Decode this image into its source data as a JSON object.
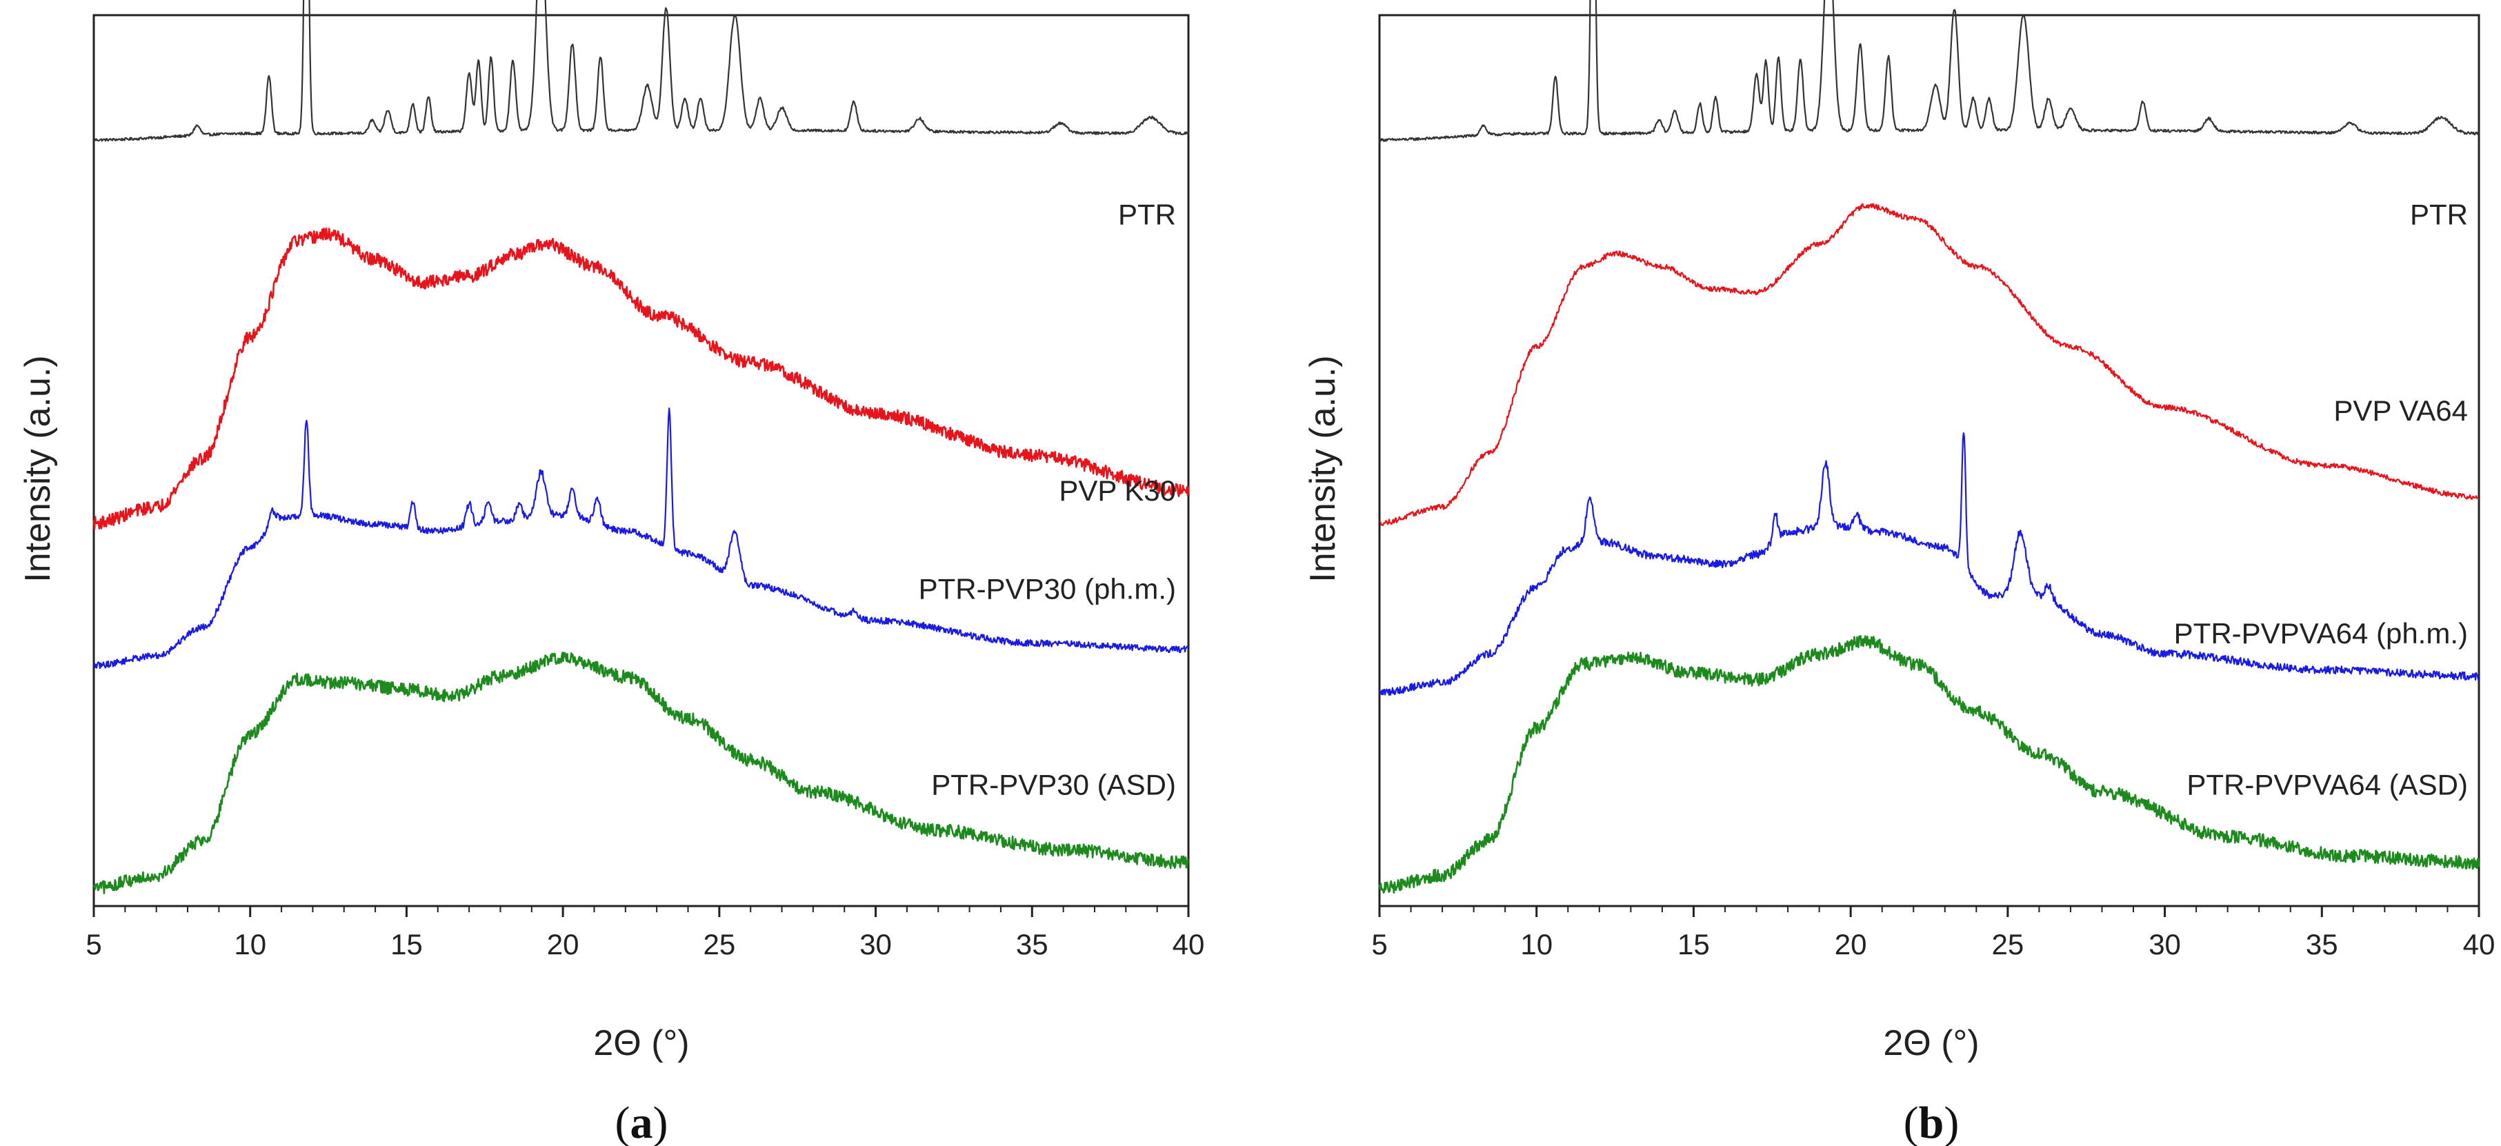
{
  "chart_data": [
    {
      "type": "line",
      "panel_label": "a",
      "xlabel": "2Θ (°)",
      "ylabel": "Intensity (a.u.)",
      "xlim": [
        5,
        40
      ],
      "xticks": [
        5,
        10,
        15,
        20,
        25,
        30,
        35,
        40
      ],
      "yticks": "none",
      "series": [
        {
          "name": "PTR",
          "color": "#333333",
          "offset": 0.86,
          "scale": 0.36,
          "baseline": [
            [
              5,
              0
            ],
            [
              10,
              0.02
            ],
            [
              12,
              0.02
            ],
            [
              20,
              0.03
            ],
            [
              26,
              0.03
            ],
            [
              40,
              0.02
            ]
          ],
          "peaks": [
            [
              8.3,
              0.03,
              0.1
            ],
            [
              10.6,
              0.18,
              0.08
            ],
            [
              11.8,
              1.0,
              0.07
            ],
            [
              13.9,
              0.04,
              0.1
            ],
            [
              14.4,
              0.07,
              0.1
            ],
            [
              15.2,
              0.09,
              0.08
            ],
            [
              15.7,
              0.11,
              0.08
            ],
            [
              17.0,
              0.18,
              0.09
            ],
            [
              17.3,
              0.22,
              0.08
            ],
            [
              17.7,
              0.23,
              0.08
            ],
            [
              18.4,
              0.22,
              0.09
            ],
            [
              19.3,
              0.62,
              0.15
            ],
            [
              20.3,
              0.27,
              0.1
            ],
            [
              21.2,
              0.23,
              0.09
            ],
            [
              22.7,
              0.14,
              0.15
            ],
            [
              23.3,
              0.38,
              0.12
            ],
            [
              23.9,
              0.1,
              0.1
            ],
            [
              24.4,
              0.1,
              0.1
            ],
            [
              25.5,
              0.36,
              0.17
            ],
            [
              26.3,
              0.1,
              0.12
            ],
            [
              27.0,
              0.07,
              0.15
            ],
            [
              29.3,
              0.09,
              0.1
            ],
            [
              31.4,
              0.04,
              0.15
            ],
            [
              35.9,
              0.03,
              0.2
            ],
            [
              38.8,
              0.05,
              0.3
            ]
          ],
          "noise": 0.004
        },
        {
          "name": "PVP K30",
          "color": "#e8141c",
          "offset": 0.43,
          "scale": 0.36,
          "baseline": [
            [
              5,
              0
            ],
            [
              7,
              0.05
            ],
            [
              8.5,
              0.2
            ],
            [
              10,
              0.58
            ],
            [
              11.5,
              0.88
            ],
            [
              12.5,
              0.9
            ],
            [
              14,
              0.82
            ],
            [
              15.5,
              0.75
            ],
            [
              17,
              0.77
            ],
            [
              18.5,
              0.84
            ],
            [
              19.5,
              0.87
            ],
            [
              21,
              0.8
            ],
            [
              23,
              0.65
            ],
            [
              26,
              0.5
            ],
            [
              30,
              0.34
            ],
            [
              35,
              0.21
            ],
            [
              40,
              0.1
            ]
          ],
          "peaks": [],
          "noise": 0.02
        },
        {
          "name": "PTR-PVP30 (ph.m.)",
          "color": "#1a1ae6",
          "offset": 0.27,
          "scale": 0.36,
          "baseline": [
            [
              5,
              0
            ],
            [
              7,
              0.03
            ],
            [
              8.5,
              0.12
            ],
            [
              10,
              0.37
            ],
            [
              11,
              0.46
            ],
            [
              12,
              0.47
            ],
            [
              14,
              0.44
            ],
            [
              16,
              0.42
            ],
            [
              18,
              0.45
            ],
            [
              20,
              0.47
            ],
            [
              22,
              0.42
            ],
            [
              24,
              0.35
            ],
            [
              26,
              0.25
            ],
            [
              30,
              0.14
            ],
            [
              35,
              0.07
            ],
            [
              40,
              0.05
            ]
          ],
          "peaks": [
            [
              10.7,
              0.04,
              0.1
            ],
            [
              11.8,
              0.3,
              0.07
            ],
            [
              15.2,
              0.08,
              0.08
            ],
            [
              17.0,
              0.07,
              0.09
            ],
            [
              17.6,
              0.06,
              0.1
            ],
            [
              18.6,
              0.05,
              0.1
            ],
            [
              19.3,
              0.14,
              0.15
            ],
            [
              20.3,
              0.08,
              0.1
            ],
            [
              21.1,
              0.08,
              0.1
            ],
            [
              23.4,
              0.43,
              0.07
            ],
            [
              25.5,
              0.15,
              0.16
            ],
            [
              29.3,
              0.02,
              0.1
            ]
          ],
          "noise": 0.01
        },
        {
          "name": "PTR-PVP30 (ASD)",
          "color": "#1c8a1c",
          "offset": 0.02,
          "scale": 0.36,
          "baseline": [
            [
              5,
              0
            ],
            [
              7,
              0.04
            ],
            [
              8.5,
              0.15
            ],
            [
              10,
              0.48
            ],
            [
              11.5,
              0.65
            ],
            [
              13,
              0.64
            ],
            [
              15,
              0.62
            ],
            [
              16.5,
              0.6
            ],
            [
              18,
              0.66
            ],
            [
              20,
              0.72
            ],
            [
              22,
              0.66
            ],
            [
              24,
              0.53
            ],
            [
              26,
              0.4
            ],
            [
              28,
              0.3
            ],
            [
              32,
              0.18
            ],
            [
              36,
              0.12
            ],
            [
              40,
              0.08
            ]
          ],
          "peaks": [],
          "noise": 0.02
        }
      ]
    },
    {
      "type": "line",
      "panel_label": "b",
      "xlabel": "2Θ (°)",
      "ylabel": "Intensity (a.u.)",
      "xlim": [
        5,
        40
      ],
      "xticks": [
        5,
        10,
        15,
        20,
        25,
        30,
        35,
        40
      ],
      "yticks": "none",
      "series": [
        {
          "name": "PTR",
          "color": "#333333",
          "offset": 0.86,
          "scale": 0.36,
          "baseline": [
            [
              5,
              0
            ],
            [
              10,
              0.02
            ],
            [
              12,
              0.02
            ],
            [
              20,
              0.03
            ],
            [
              26,
              0.03
            ],
            [
              40,
              0.02
            ]
          ],
          "peaks": [
            [
              8.3,
              0.03,
              0.1
            ],
            [
              10.6,
              0.18,
              0.08
            ],
            [
              11.8,
              1.0,
              0.07
            ],
            [
              13.9,
              0.04,
              0.1
            ],
            [
              14.4,
              0.07,
              0.1
            ],
            [
              15.2,
              0.09,
              0.08
            ],
            [
              15.7,
              0.11,
              0.08
            ],
            [
              17.0,
              0.18,
              0.09
            ],
            [
              17.3,
              0.22,
              0.08
            ],
            [
              17.7,
              0.23,
              0.08
            ],
            [
              18.4,
              0.22,
              0.09
            ],
            [
              19.3,
              0.62,
              0.15
            ],
            [
              20.3,
              0.27,
              0.1
            ],
            [
              21.2,
              0.23,
              0.09
            ],
            [
              22.7,
              0.14,
              0.15
            ],
            [
              23.3,
              0.38,
              0.12
            ],
            [
              23.9,
              0.1,
              0.1
            ],
            [
              24.4,
              0.1,
              0.1
            ],
            [
              25.5,
              0.36,
              0.17
            ],
            [
              26.3,
              0.1,
              0.12
            ],
            [
              27.0,
              0.07,
              0.15
            ],
            [
              29.3,
              0.09,
              0.1
            ],
            [
              31.4,
              0.04,
              0.15
            ],
            [
              35.9,
              0.03,
              0.2
            ],
            [
              38.8,
              0.05,
              0.3
            ]
          ],
          "noise": 0.004
        },
        {
          "name": "PVP VA64",
          "color": "#e8141c",
          "offset": 0.43,
          "scale": 0.36,
          "baseline": [
            [
              5,
              0
            ],
            [
              7,
              0.05
            ],
            [
              8.5,
              0.22
            ],
            [
              10,
              0.55
            ],
            [
              11.5,
              0.8
            ],
            [
              12.5,
              0.84
            ],
            [
              14,
              0.8
            ],
            [
              15.5,
              0.73
            ],
            [
              17,
              0.72
            ],
            [
              19,
              0.87
            ],
            [
              20.5,
              0.99
            ],
            [
              22,
              0.95
            ],
            [
              24,
              0.8
            ],
            [
              27,
              0.55
            ],
            [
              30,
              0.36
            ],
            [
              35,
              0.18
            ],
            [
              40,
              0.08
            ]
          ],
          "peaks": [],
          "noise": 0.008
        },
        {
          "name": "PTR-PVPVA64 (ph.m.)",
          "color": "#1a1ae6",
          "offset": 0.24,
          "scale": 0.36,
          "baseline": [
            [
              5,
              0
            ],
            [
              7,
              0.03
            ],
            [
              8.5,
              0.12
            ],
            [
              10,
              0.33
            ],
            [
              11,
              0.45
            ],
            [
              12,
              0.47
            ],
            [
              14,
              0.42
            ],
            [
              16,
              0.4
            ],
            [
              17,
              0.43
            ],
            [
              18,
              0.5
            ],
            [
              19.5,
              0.52
            ],
            [
              21,
              0.5
            ],
            [
              23,
              0.45
            ],
            [
              24.5,
              0.3
            ],
            [
              26,
              0.3
            ],
            [
              28,
              0.18
            ],
            [
              30,
              0.12
            ],
            [
              35,
              0.07
            ],
            [
              40,
              0.05
            ]
          ],
          "peaks": [
            [
              11.7,
              0.14,
              0.12
            ],
            [
              17.6,
              0.08,
              0.07
            ],
            [
              19.2,
              0.2,
              0.12
            ],
            [
              20.2,
              0.04,
              0.1
            ],
            [
              23.6,
              0.42,
              0.06
            ],
            [
              25.4,
              0.2,
              0.2
            ],
            [
              26.3,
              0.04,
              0.1
            ]
          ],
          "noise": 0.012
        },
        {
          "name": "PTR-PVPVA64 (ASD)",
          "color": "#1c8a1c",
          "offset": 0.02,
          "scale": 0.36,
          "baseline": [
            [
              5,
              0
            ],
            [
              7,
              0.04
            ],
            [
              8.5,
              0.15
            ],
            [
              10,
              0.5
            ],
            [
              11.5,
              0.7
            ],
            [
              13,
              0.72
            ],
            [
              15,
              0.67
            ],
            [
              17,
              0.65
            ],
            [
              19,
              0.73
            ],
            [
              20.5,
              0.77
            ],
            [
              22,
              0.7
            ],
            [
              24,
              0.55
            ],
            [
              26,
              0.42
            ],
            [
              28,
              0.3
            ],
            [
              32,
              0.16
            ],
            [
              36,
              0.1
            ],
            [
              40,
              0.08
            ]
          ],
          "peaks": [],
          "noise": 0.02
        }
      ]
    }
  ]
}
